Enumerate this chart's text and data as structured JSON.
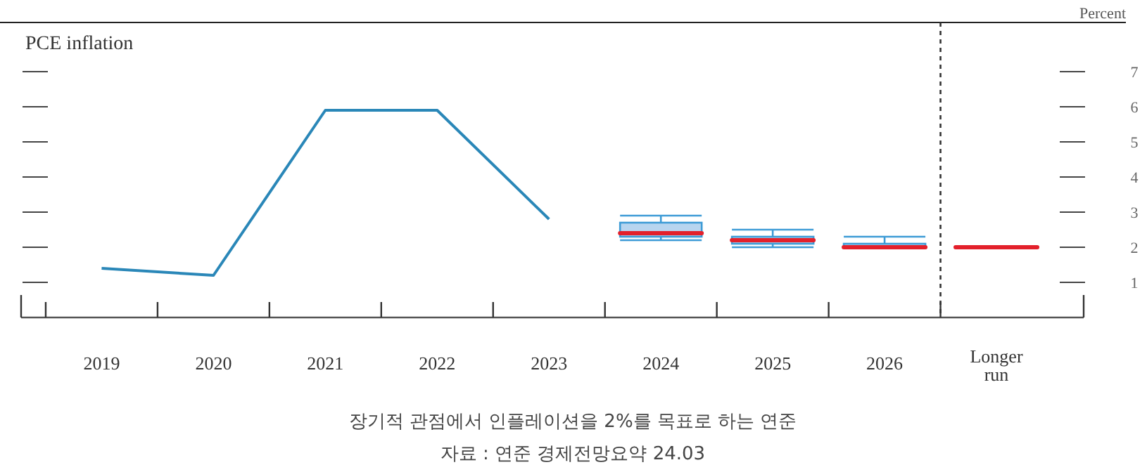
{
  "chart_data": {
    "type": "line",
    "title": "PCE inflation",
    "ylabel": "Percent",
    "categories": [
      "2019",
      "2020",
      "2021",
      "2022",
      "2023",
      "2024",
      "2025",
      "2026",
      "Longer run"
    ],
    "series": [
      {
        "color": "#2a87b8",
        "values": [
          1.4,
          1.2,
          5.9,
          5.9,
          2.8,
          null,
          null,
          null,
          null
        ]
      },
      {
        "type": "box",
        "color": "#3d9bd6",
        "boxes": [
          null,
          null,
          null,
          null,
          null,
          {
            "low": 2.2,
            "q1": 2.3,
            "median": 2.4,
            "q3": 2.7,
            "high": 2.9
          },
          {
            "low": 2.0,
            "q1": 2.1,
            "median": 2.2,
            "q3": 2.3,
            "high": 2.5
          },
          {
            "low": 2.0,
            "q1": 2.0,
            "median": 2.0,
            "q3": 2.1,
            "high": 2.3
          },
          {
            "low": 2.0,
            "q1": 2.0,
            "median": 2.0,
            "q3": 2.0,
            "high": 2.0
          }
        ]
      }
    ],
    "ylim": [
      0,
      8.4
    ],
    "yticks": [
      1,
      2,
      3,
      4,
      5,
      6,
      7
    ],
    "grid": false,
    "annotations": [
      "장기적 관점에서 인플레이션을 2%를 목표로 하는 연준",
      "자료 : 연준 경제전망요약 24.03"
    ]
  }
}
